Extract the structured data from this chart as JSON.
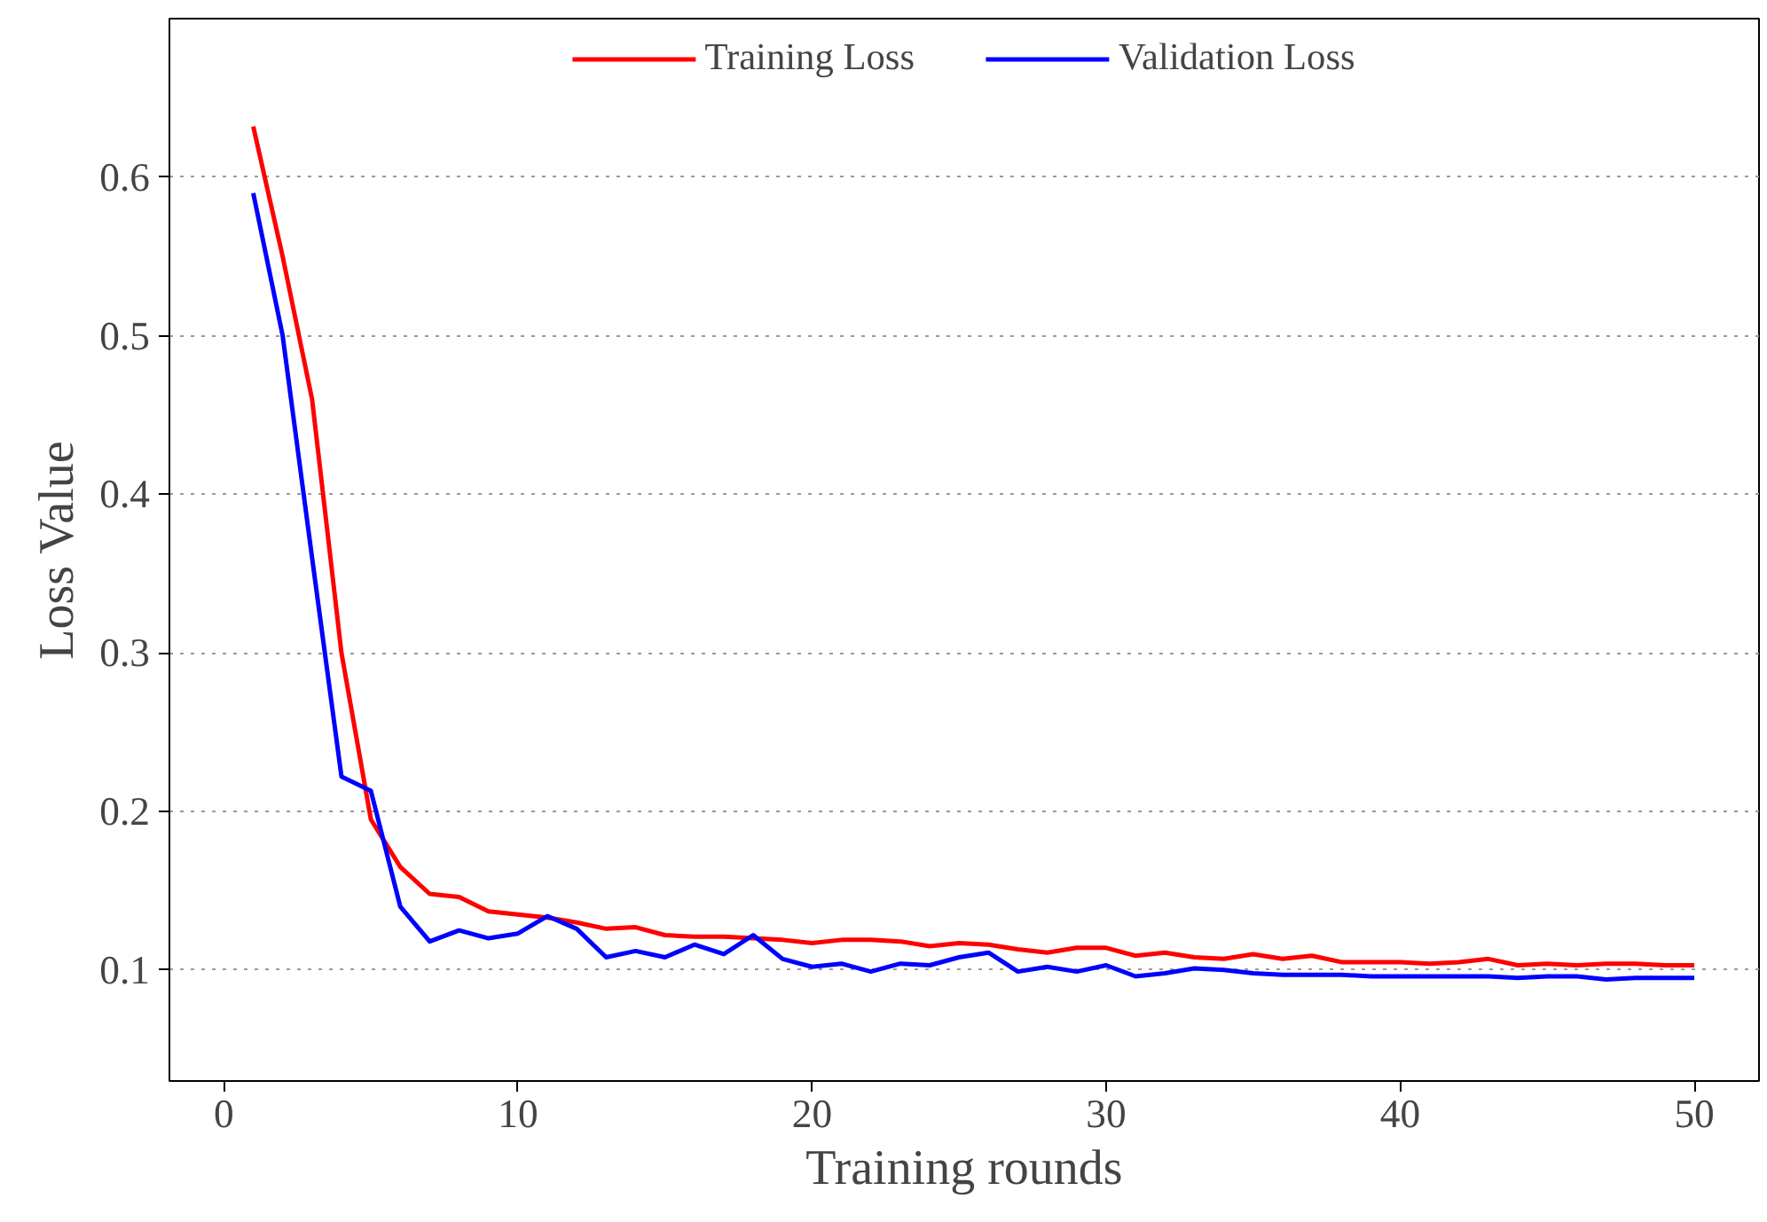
{
  "chart_data": {
    "type": "line",
    "xlabel": "Training rounds",
    "ylabel": "Loss Value",
    "x": [
      1,
      2,
      3,
      4,
      5,
      6,
      7,
      8,
      9,
      10,
      11,
      12,
      13,
      14,
      15,
      16,
      17,
      18,
      19,
      20,
      21,
      22,
      23,
      24,
      25,
      26,
      27,
      28,
      29,
      30,
      31,
      32,
      33,
      34,
      35,
      36,
      37,
      38,
      39,
      40,
      41,
      42,
      43,
      44,
      45,
      46,
      47,
      48,
      49,
      50
    ],
    "series": [
      {
        "name": "Training Loss",
        "color": "#ff0000",
        "values": [
          0.632,
          0.55,
          0.46,
          0.3,
          0.195,
          0.165,
          0.148,
          0.146,
          0.137,
          0.135,
          0.133,
          0.13,
          0.126,
          0.127,
          0.122,
          0.121,
          0.121,
          0.12,
          0.119,
          0.117,
          0.119,
          0.119,
          0.118,
          0.115,
          0.117,
          0.116,
          0.113,
          0.111,
          0.114,
          0.114,
          0.109,
          0.111,
          0.108,
          0.107,
          0.11,
          0.107,
          0.109,
          0.105,
          0.105,
          0.105,
          0.104,
          0.105,
          0.107,
          0.103,
          0.104,
          0.103,
          0.104,
          0.104,
          0.103,
          0.103
        ]
      },
      {
        "name": "Validation Loss",
        "color": "#0000ff",
        "values": [
          0.59,
          0.5,
          0.36,
          0.222,
          0.213,
          0.14,
          0.118,
          0.125,
          0.12,
          0.123,
          0.134,
          0.126,
          0.108,
          0.112,
          0.108,
          0.116,
          0.11,
          0.122,
          0.107,
          0.102,
          0.104,
          0.099,
          0.104,
          0.103,
          0.108,
          0.111,
          0.099,
          0.102,
          0.099,
          0.103,
          0.096,
          0.098,
          0.101,
          0.1,
          0.098,
          0.097,
          0.097,
          0.097,
          0.096,
          0.096,
          0.096,
          0.096,
          0.096,
          0.095,
          0.096,
          0.096,
          0.094,
          0.095,
          0.095,
          0.095
        ]
      }
    ],
    "xlim": [
      -1.85,
      52.2
    ],
    "ylim": [
      0.03,
      0.7
    ],
    "xticks": [
      0,
      10,
      20,
      30,
      40,
      50
    ],
    "yticks": [
      0.1,
      0.2,
      0.3,
      0.4,
      0.5,
      0.6
    ],
    "grid": "y",
    "legend": "top",
    "marker": "none",
    "line_style": "solid"
  }
}
